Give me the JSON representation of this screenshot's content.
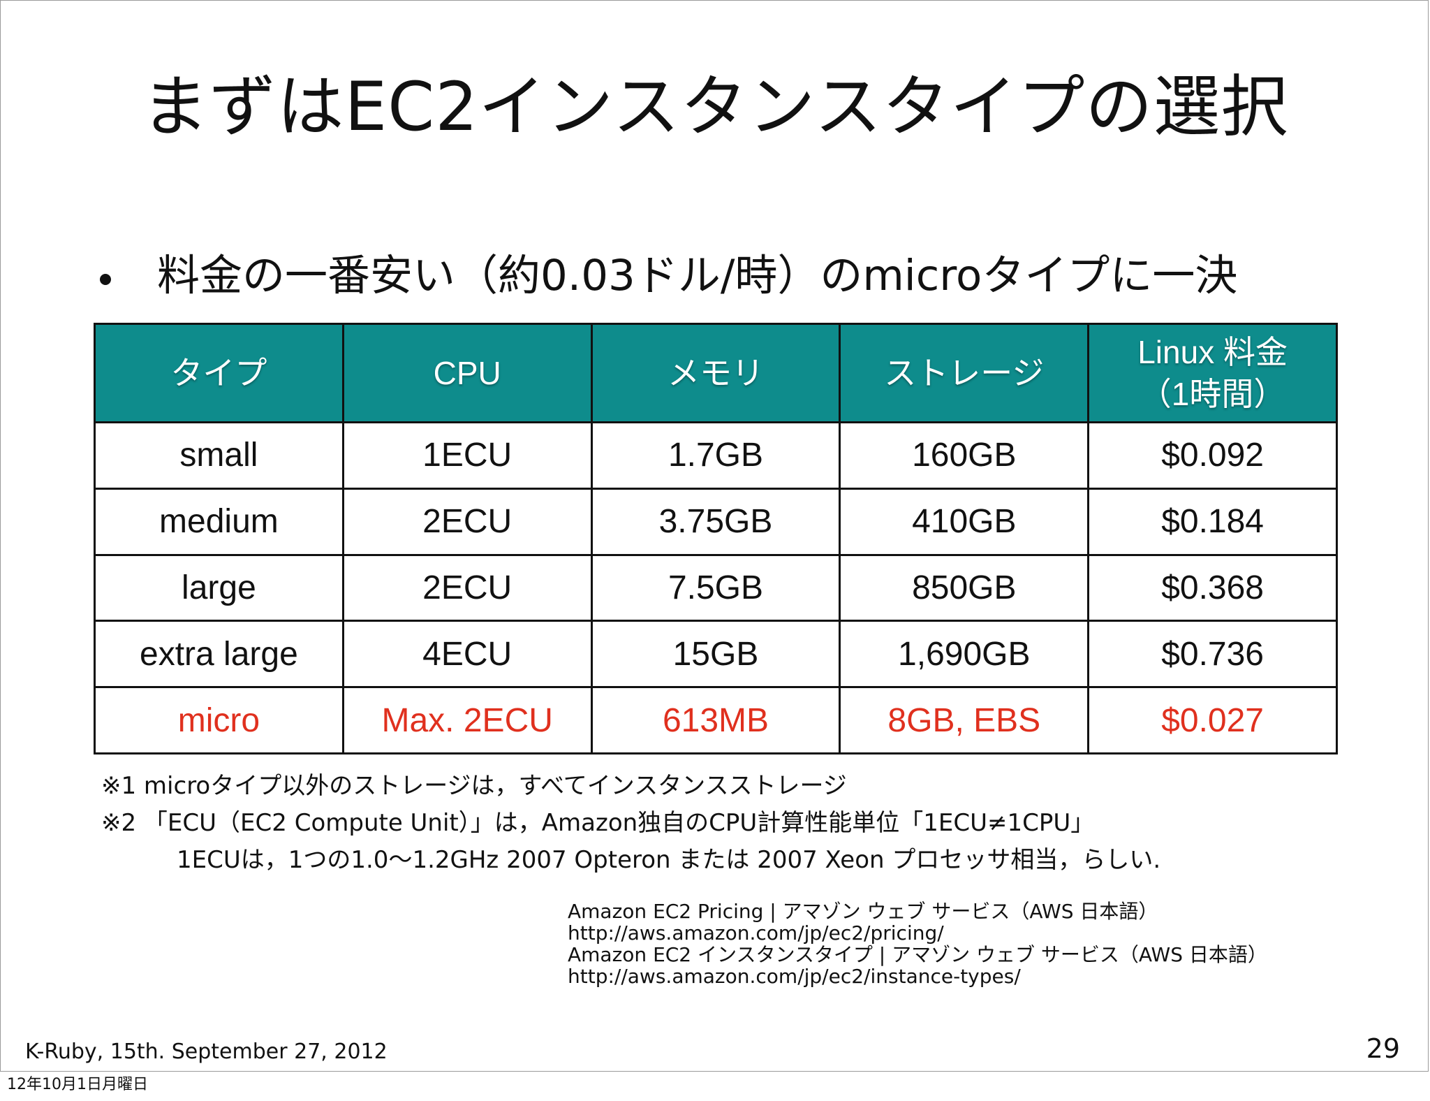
{
  "slide": {
    "title": "まずはEC2インスタンスタイプの選択",
    "bullet": "料金の一番安い（約0.03ドル/時）のmicroタイプに一決",
    "table": {
      "headers": [
        "タイプ",
        "CPU",
        "メモリ",
        "ストレージ",
        "Linux 料金",
        "（1時間）"
      ],
      "rows": [
        [
          "small",
          "1ECU",
          "1.7GB",
          "160GB",
          "$0.092"
        ],
        [
          "medium",
          "2ECU",
          "3.75GB",
          "410GB",
          "$0.184"
        ],
        [
          "large",
          "2ECU",
          "7.5GB",
          "850GB",
          "$0.368"
        ],
        [
          "extra large",
          "4ECU",
          "15GB",
          "1,690GB",
          "$0.736"
        ],
        [
          "micro",
          "Max. 2ECU",
          "613MB",
          "8GB, EBS",
          "$0.027"
        ]
      ],
      "header_color": "#0e8c8c",
      "highlight_color": "#e0301e"
    },
    "notes": [
      "※1 microタイプ以外のストレージは，すべてインスタンスストレージ",
      "※2 「ECU（EC2 Compute Unit）」は，Amazon独自のCPU計算性能単位「1ECU≠1CPU」",
      "1ECUは，1つの1.0〜1.2GHz 2007 Opteron または 2007 Xeon プロセッサ相当，らしい."
    ],
    "references": [
      "Amazon EC2 Pricing | アマゾン ウェブ サービス（AWS 日本語）",
      "http://aws.amazon.com/jp/ec2/pricing/",
      "Amazon EC2 インスタンスタイプ | アマゾン ウェブ サービス（AWS 日本語）",
      "http://aws.amazon.com/jp/ec2/instance-types/"
    ],
    "footer": "K-Ruby, 15th. September 27, 2012",
    "page_number": "29"
  },
  "datestamp": "12年10月1日月曜日"
}
